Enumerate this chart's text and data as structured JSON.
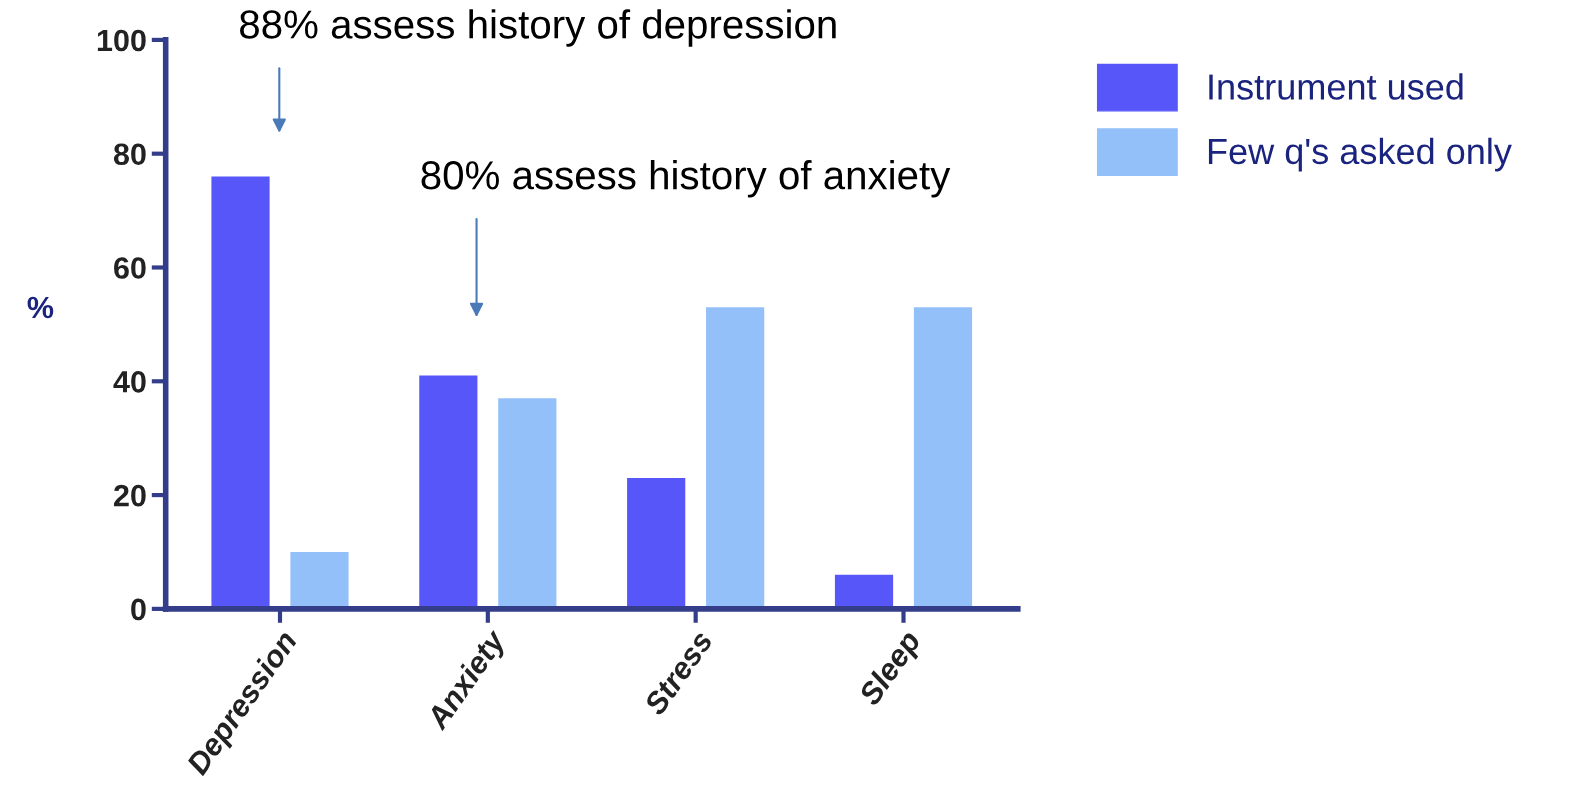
{
  "chart_data": {
    "type": "bar",
    "ylabel": "%",
    "categories": [
      "Depression",
      "Anxiety",
      "Stress",
      "Sleep"
    ],
    "series": [
      {
        "name": "Instrument used",
        "color": "#5757f9",
        "values": [
          76,
          41,
          23,
          6
        ]
      },
      {
        "name": "Few q's asked only",
        "color": "#94c0fa",
        "values": [
          10,
          37,
          53,
          53
        ]
      }
    ],
    "ylim": [
      0,
      100
    ],
    "yticks": [
      0,
      20,
      40,
      60,
      80,
      100
    ],
    "grid": false,
    "legend": "top right",
    "annotations": [
      "88% assess history of depression",
      "80% assess history of anxiety"
    ]
  }
}
